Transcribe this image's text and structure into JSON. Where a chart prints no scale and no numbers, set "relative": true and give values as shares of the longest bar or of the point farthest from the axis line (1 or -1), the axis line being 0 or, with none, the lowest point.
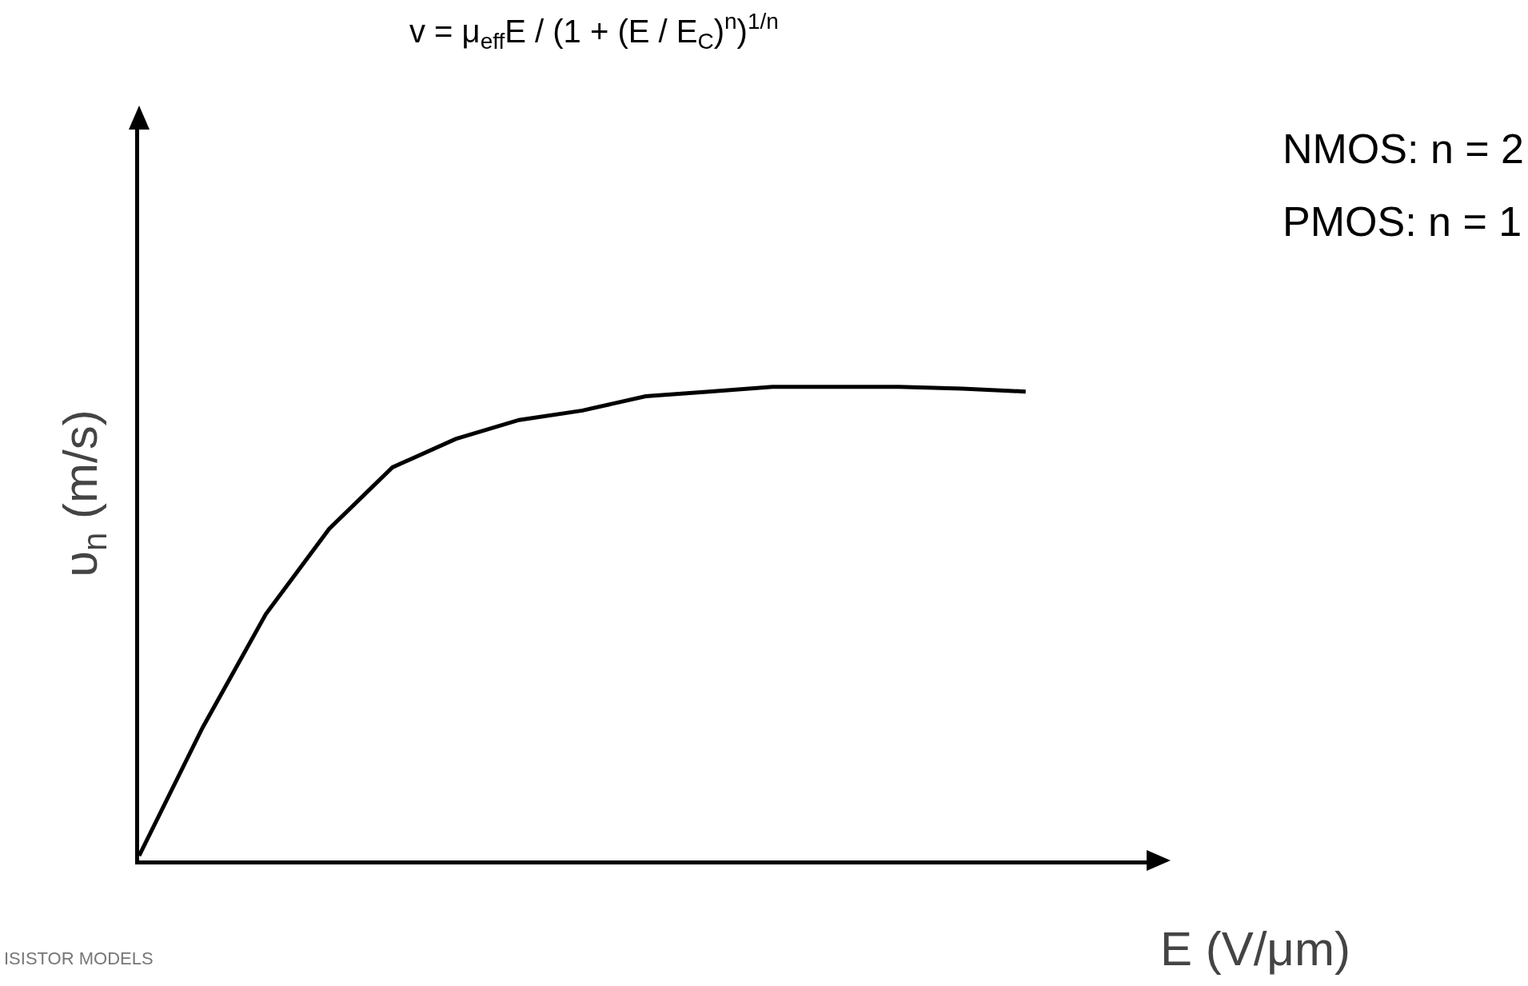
{
  "chart_data": {
    "type": "line",
    "relative": true,
    "xlabel": "E (V/μm)",
    "ylabel": "υ$_{n}$ (m/s)",
    "categories": [
      null,
      null,
      null,
      null,
      null,
      null,
      null,
      null,
      null,
      null,
      null,
      null,
      null,
      null,
      null
    ],
    "series": [
      {
        "color": "#000000",
        "values": [
          0.01,
          0.28,
          0.52,
          0.7,
          0.83,
          0.89,
          0.93,
          0.95,
          0.98,
          0.99,
          1.0,
          1.0,
          1.0,
          0.996,
          0.99
        ]
      }
    ],
    "marker": "none",
    "line_style": "solid",
    "annotations": [
      "v = μ$_{eff}$E / (1 + (E / E$_{C}$)$^{n}$)$^{1/n}$",
      "NMOS: n = 2",
      "PMOS: n = 1",
      "ISISTOR MODELS"
    ]
  }
}
